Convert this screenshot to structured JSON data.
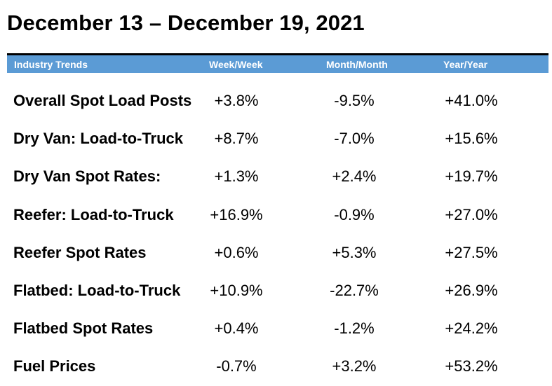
{
  "title": "December 13 – December 19, 2021",
  "header": {
    "columns": [
      "Industry Trends",
      "Week/Week",
      "Month/Month",
      "Year/Year"
    ],
    "background": "#5b9bd5"
  },
  "rows": [
    {
      "label": "Overall Spot Load Posts",
      "week": "+3.8%",
      "month": "-9.5%",
      "year": "+41.0%"
    },
    {
      "label": "Dry Van: Load-to-Truck",
      "week": "+8.7%",
      "month": "-7.0%",
      "year": "+15.6%"
    },
    {
      "label": "Dry Van Spot Rates:",
      "week": "+1.3%",
      "month": "+2.4%",
      "year": "+19.7%"
    },
    {
      "label": "Reefer: Load-to-Truck",
      "week": "+16.9%",
      "month": "-0.9%",
      "year": "+27.0%"
    },
    {
      "label": "Reefer Spot Rates",
      "week": "+0.6%",
      "month": "+5.3%",
      "year": "+27.5%"
    },
    {
      "label": "Flatbed: Load-to-Truck",
      "week": "+10.9%",
      "month": "-22.7%",
      "year": "+26.9%"
    },
    {
      "label": "Flatbed Spot Rates",
      "week": "+0.4%",
      "month": "-1.2%",
      "year": "+24.2%"
    },
    {
      "label": "Fuel Prices",
      "week": "-0.7%",
      "month": "+3.2%",
      "year": "+53.2%"
    }
  ]
}
